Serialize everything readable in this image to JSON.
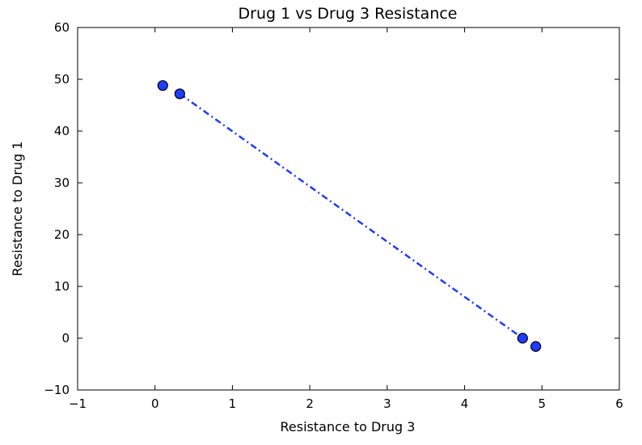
{
  "chart_data": {
    "type": "scatter",
    "title": "Drug 1 vs Drug 3 Resistance",
    "xlabel": "Resistance to Drug 3",
    "ylabel": "Resistance to Drug 1",
    "xlim": [
      -1,
      6
    ],
    "ylim": [
      -10,
      60
    ],
    "x_ticks": [
      -1,
      0,
      1,
      2,
      3,
      4,
      5,
      6
    ],
    "x_tick_labels": [
      "−1",
      "0",
      "1",
      "2",
      "3",
      "4",
      "5",
      "6"
    ],
    "y_ticks": [
      -10,
      0,
      10,
      20,
      30,
      40,
      50,
      60
    ],
    "y_tick_labels": [
      "−10",
      "0",
      "10",
      "20",
      "30",
      "40",
      "50",
      "60"
    ],
    "grid": false,
    "points": [
      {
        "x": 0.1,
        "y": 48.8
      },
      {
        "x": 0.32,
        "y": 47.2
      },
      {
        "x": 4.75,
        "y": 0.0
      },
      {
        "x": 4.92,
        "y": -1.6
      }
    ],
    "fit_line": {
      "style": "dash-dot",
      "x": [
        0.32,
        4.75
      ],
      "y": [
        47.2,
        0.0
      ]
    },
    "colors": {
      "marker_fill": "#1f3cff",
      "marker_edge": "#000000",
      "line": "#1f3cff"
    }
  }
}
